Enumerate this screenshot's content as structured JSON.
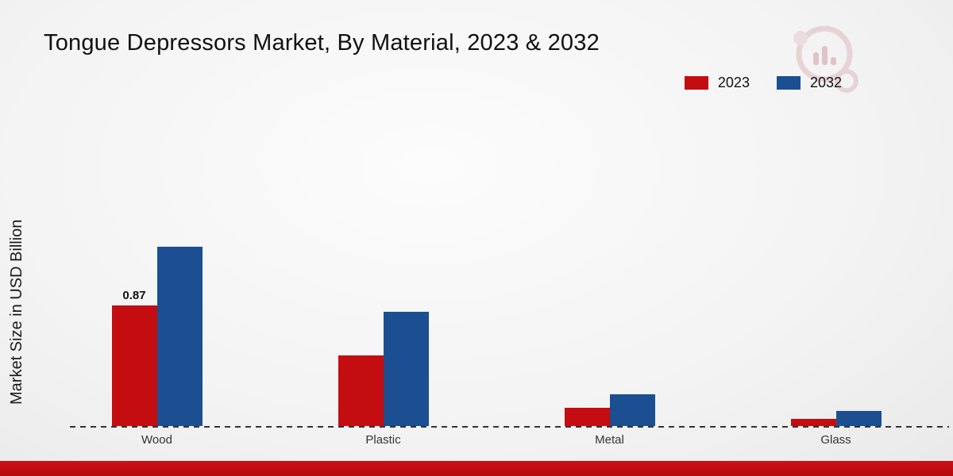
{
  "page": {
    "title": "Tongue Depressors Market, By Material, 2023 & 2032"
  },
  "colors": {
    "series_2023": "#c40d11",
    "series_2032": "#1b4f91",
    "footer_band": "#c00c10"
  },
  "chart_data": {
    "type": "bar",
    "title": "Tongue Depressors Market, By Material, 2023 & 2032",
    "xlabel": "",
    "ylabel": "Market Size in USD Billion",
    "categories": [
      "Wood",
      "Plastic",
      "Metal",
      "Glass"
    ],
    "series": [
      {
        "name": "2023",
        "color": "#c40d11",
        "values": [
          0.87,
          0.51,
          0.13,
          0.05
        ],
        "labels": [
          "0.87",
          "",
          "",
          ""
        ]
      },
      {
        "name": "2032",
        "color": "#1b4f91",
        "values": [
          1.29,
          0.82,
          0.23,
          0.11
        ],
        "labels": [
          "",
          "",
          "",
          ""
        ]
      }
    ],
    "ylim": [
      0,
      1.4
    ],
    "grid": false,
    "legend_position": "top-right",
    "baseline_style": "dashed",
    "annotations": [
      {
        "series": "2023",
        "category": "Wood",
        "text": "0.87"
      }
    ]
  }
}
